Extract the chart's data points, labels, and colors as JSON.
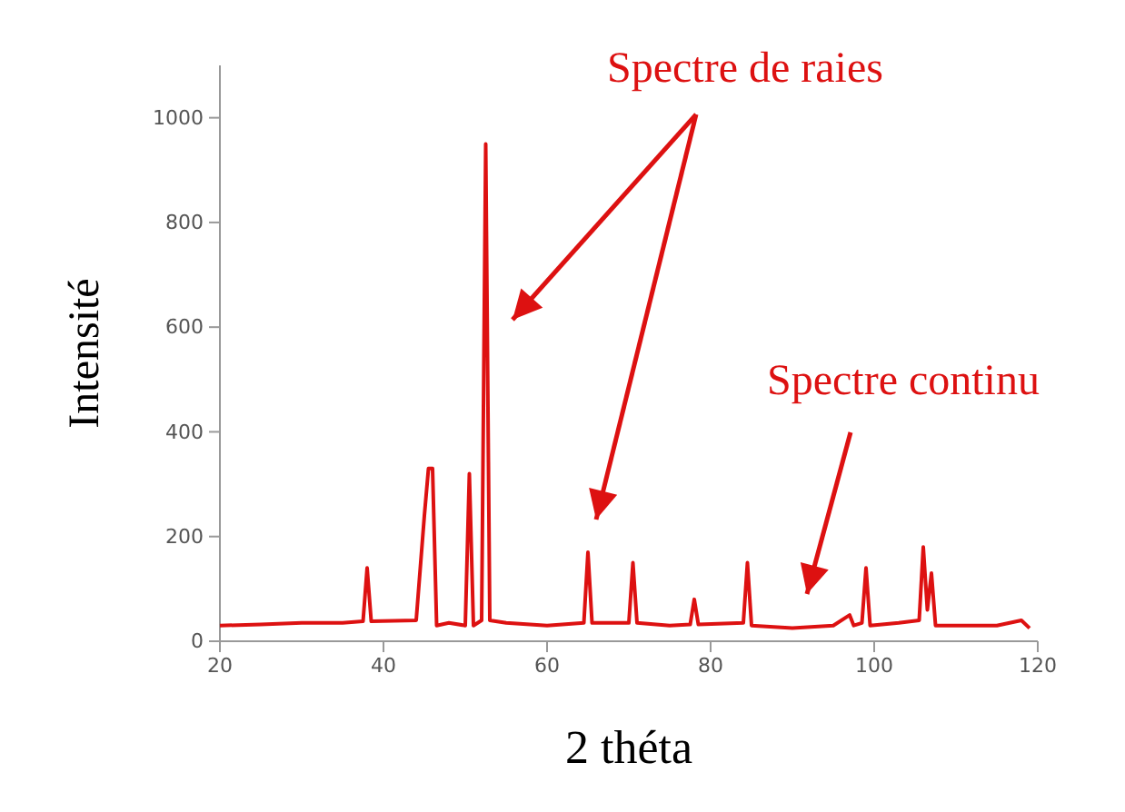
{
  "chart_data": {
    "type": "line",
    "xlabel": "2 théta",
    "ylabel": "Intensité",
    "xlim": [
      20,
      120
    ],
    "ylim": [
      0,
      1100
    ],
    "xticks": [
      20,
      40,
      60,
      80,
      100,
      120
    ],
    "yticks": [
      0,
      200,
      400,
      600,
      800,
      1000
    ],
    "grid": false,
    "marker": "none",
    "line_style": "solid",
    "series": [
      {
        "color": "#dd1111",
        "x": [
          20,
          25,
          30,
          35,
          37.5,
          38,
          38.5,
          44,
          45,
          45.5,
          46,
          46.5,
          48,
          50,
          50.5,
          51,
          52,
          52.5,
          53,
          55,
          60,
          64.5,
          65,
          65.5,
          70,
          70.5,
          71,
          75,
          77.5,
          78,
          78.5,
          84,
          84.5,
          85,
          90,
          95,
          97,
          97.5,
          98.5,
          99,
          99.5,
          103,
          105.5,
          106,
          106.5,
          107,
          107.5,
          110,
          115,
          118,
          119
        ],
        "values": [
          30,
          32,
          35,
          35,
          38,
          140,
          38,
          40,
          240,
          330,
          330,
          30,
          35,
          30,
          320,
          30,
          40,
          950,
          40,
          35,
          30,
          35,
          170,
          35,
          35,
          150,
          35,
          30,
          32,
          80,
          32,
          35,
          150,
          30,
          25,
          30,
          50,
          30,
          35,
          140,
          30,
          35,
          40,
          180,
          60,
          130,
          30,
          30,
          30,
          40,
          25
        ]
      }
    ],
    "annotations": [
      "Spectre de raies",
      "Spectre continu"
    ]
  }
}
